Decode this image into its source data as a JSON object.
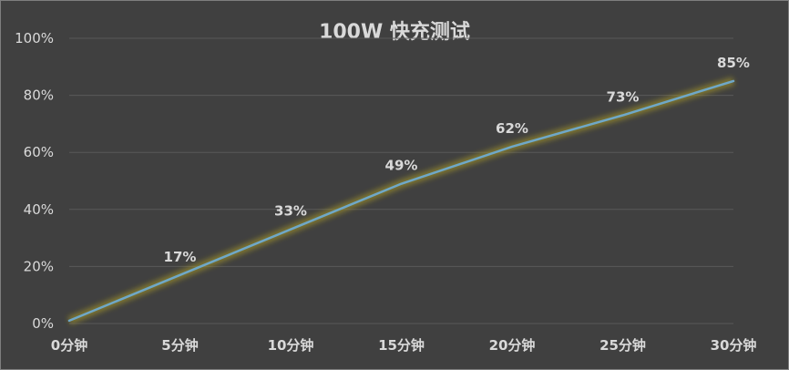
{
  "chart_data": {
    "type": "line",
    "title": "100W 快充测试",
    "x": [
      "0分钟",
      "5分钟",
      "10分钟",
      "15分钟",
      "20分钟",
      "25分钟",
      "30分钟"
    ],
    "series": [
      {
        "values": [
          1,
          17,
          33,
          49,
          62,
          73,
          85
        ],
        "data_labels": [
          "",
          "17%",
          "33%",
          "49%",
          "62%",
          "73%",
          "85%"
        ],
        "color": "#6fa8c8",
        "glow_color": "#a89a2a"
      }
    ],
    "ylim": [
      0,
      100
    ],
    "yticks": [
      0,
      20,
      40,
      60,
      80,
      100
    ],
    "ytick_labels": [
      "0%",
      "20%",
      "40%",
      "60%",
      "80%",
      "100%"
    ],
    "grid": true,
    "legend": "none"
  }
}
